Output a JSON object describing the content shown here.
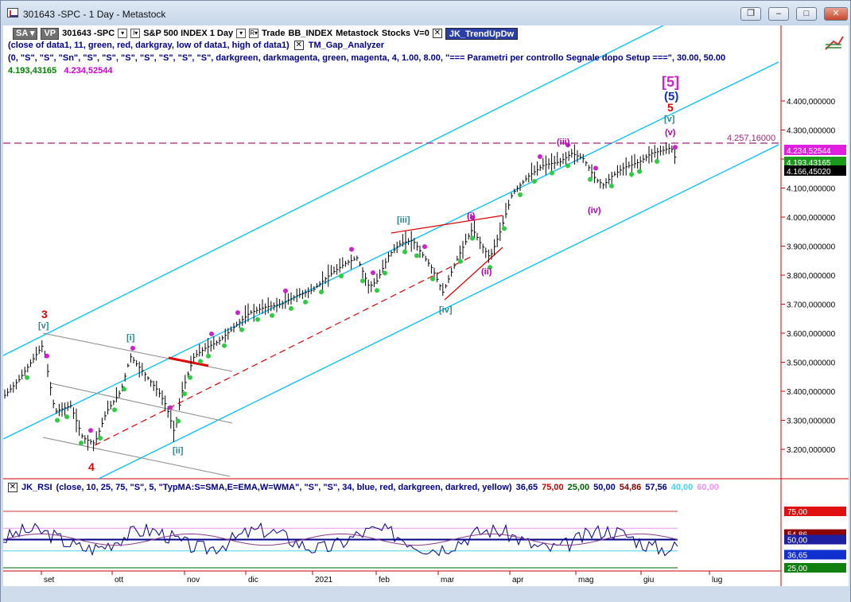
{
  "window": {
    "title": "301643 -SPC - 1 Day - Metastock",
    "buttons": {
      "restore_a": "❐",
      "minimize": "–",
      "maximize": "□",
      "close": "✕"
    }
  },
  "toolbar": {
    "sa": "SA",
    "vp": "VP",
    "symbol": "301643 -SPC",
    "instrument": "S&P 500 INDEX 1 Day",
    "trade": "Trade",
    "bb": "BB_INDEX",
    "source": "Metastock",
    "stocks": "Stocks",
    "v": "V=0",
    "indicator": "JK_TrendUpDw"
  },
  "indicators": {
    "row1_a": "(close of data1, 11, green, red, darkgray, low of data1, high of data1)",
    "row1_b": "TM_Gap_Analyzer",
    "row2": "(0, \"S\", \"S\", \"Sn\", \"S\", \"S\", \"S\", \"S\", \"S\", \"S\", \"S\", darkgreen, darkmagenta, green, magenta, 4, 1.00, 8.00, \"=== Parametri per controllo Segnale dopo Setup ===\", 30.00, 50.00",
    "row3_a": "4.193,43165",
    "row3_b": "4.234,52544"
  },
  "rsi": {
    "name": "JK_RSI",
    "params": "(close, 10, 25, 75, \"S\", 5, \"TypMA:S=SMA,E=EMA,W=WMA\", \"S\", \"S\", 34, blue, red, darkgreen, darkred, yellow)",
    "v1": "36,65",
    "v2": "75,00",
    "v3": "25,00",
    "v4": "50,00",
    "v5": "54,86",
    "v6": "57,56",
    "v7": "40,00",
    "v8": "60,00",
    "axis": [
      "75,00",
      "54,86",
      "50,00",
      "36,65",
      "25,00"
    ]
  },
  "price_axis": [
    "4.400,000000",
    "4.300,000000",
    "4.200,000000",
    "4.100,000000",
    "4.000,000000",
    "3.900,000000",
    "3.800,000000",
    "3.700,000000",
    "3.600,000000",
    "3.500,000000",
    "3.400,000000",
    "3.300,000000",
    "3.200,000000"
  ],
  "price_tags": {
    "hline": "4.257,16000",
    "tag1": "4.234,52544",
    "tag2": "4.193,43165",
    "tag3": "4.166,45020"
  },
  "date_axis": [
    "set",
    "ott",
    "nov",
    "dic",
    "2021",
    "feb",
    "mar",
    "apr",
    "mag",
    "giu",
    "lug"
  ],
  "wave_labels": {
    "red3": "3",
    "v1": "[v]",
    "i1": "[i]",
    "ii1": "[ii]",
    "red4": "4",
    "iii1": "[iii]",
    "iv1": "[iv]",
    "i_small": "(i)",
    "ii_small": "(ii)",
    "iii_small": "(iii)",
    "iv_small": "(iv)",
    "v_small": "(v)",
    "five_box": "[5]",
    "five_paren": "(5)",
    "five_red": "5",
    "v2": "[v]"
  },
  "colors": {
    "channel": "#00bfff",
    "magenta": "#b400b4",
    "red": "#e00000",
    "green": "#2ecc40",
    "navy": "#00008b"
  }
}
